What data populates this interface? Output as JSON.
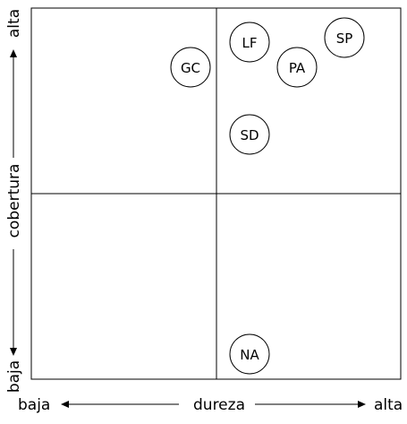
{
  "diagram": {
    "x_axis": {
      "name": "dureza",
      "low": "baja",
      "high": "alta"
    },
    "y_axis": {
      "name": "cobertura",
      "low": "baja",
      "high": "alta"
    },
    "nodes": [
      {
        "label": "LF"
      },
      {
        "label": "SP"
      },
      {
        "label": "GC"
      },
      {
        "label": "PA"
      },
      {
        "label": "SD"
      },
      {
        "label": "NA"
      }
    ]
  }
}
